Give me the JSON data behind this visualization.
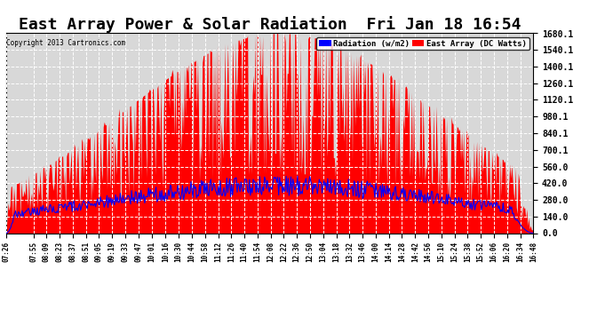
{
  "title": "East Array Power & Solar Radiation  Fri Jan 18 16:54",
  "copyright": "Copyright 2013 Cartronics.com",
  "legend_labels": [
    "Radiation (w/m2)",
    "East Array (DC Watts)"
  ],
  "ymin": 0.0,
  "ymax": 1680.1,
  "yticks": [
    0.0,
    140.0,
    280.0,
    420.0,
    560.0,
    700.1,
    840.1,
    980.1,
    1120.1,
    1260.1,
    1400.1,
    1540.1,
    1680.1
  ],
  "plot_bg_color": "#d8d8d8",
  "grid_color": "#ffffff",
  "title_fontsize": 13,
  "xtick_labels": [
    "07:26",
    "07:55",
    "08:09",
    "08:23",
    "08:37",
    "08:51",
    "09:05",
    "09:19",
    "09:33",
    "09:47",
    "10:01",
    "10:16",
    "10:30",
    "10:44",
    "10:58",
    "11:12",
    "11:26",
    "11:40",
    "11:54",
    "12:08",
    "12:22",
    "12:36",
    "12:50",
    "13:04",
    "13:18",
    "13:32",
    "13:46",
    "14:00",
    "14:14",
    "14:28",
    "14:42",
    "14:56",
    "15:10",
    "15:24",
    "15:38",
    "15:52",
    "16:06",
    "16:20",
    "16:34",
    "16:48"
  ],
  "num_points": 560,
  "rad_peak": 420.0,
  "east_base_peak": 1680.0,
  "start_hour": 7.4333,
  "end_hour": 16.8,
  "peak_hour": 12.3
}
